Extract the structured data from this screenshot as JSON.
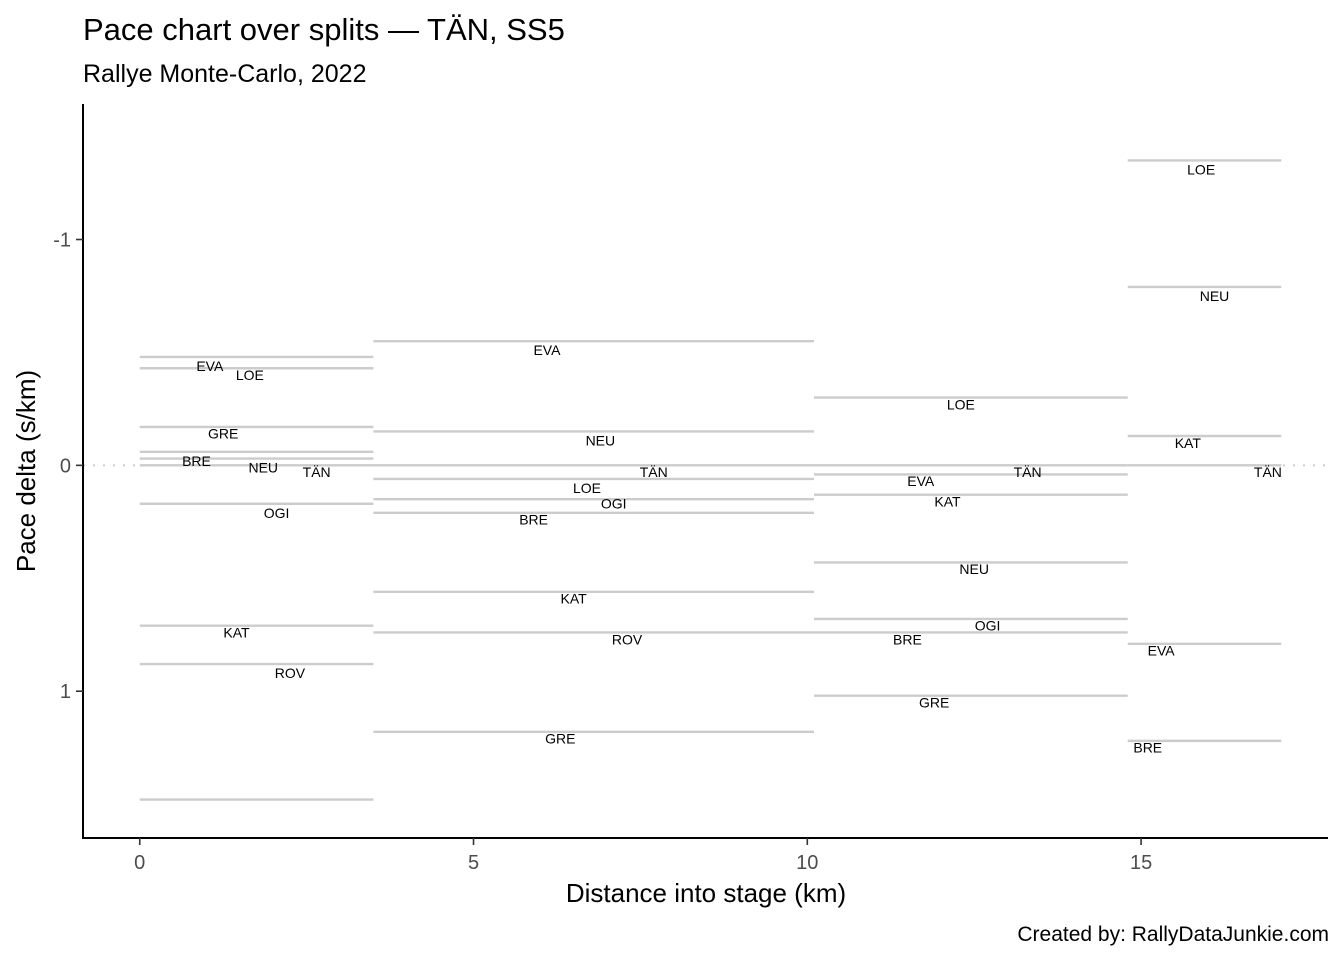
{
  "chart_data": {
    "type": "line",
    "title": "Pace chart over splits — TÄN, SS5",
    "subtitle": "Rallye Monte-Carlo, 2022",
    "xlabel": "Distance into stage (km)",
    "ylabel": "Pace delta (s/km)",
    "caption": "Created by: RallyDataJunkie.com",
    "xlim": [
      -0.85,
      17.8
    ],
    "ylim": [
      1.65,
      -1.6
    ],
    "y_reversed": true,
    "grid": false,
    "x_ticks": [
      0,
      5,
      10,
      15
    ],
    "x_tick_labels": [
      "0",
      "5",
      "10",
      "15"
    ],
    "y_ticks": [
      -1,
      0,
      1
    ],
    "y_tick_labels": [
      "-1",
      "0",
      "1"
    ],
    "reference_line": {
      "y": 0,
      "style": "dotted"
    },
    "splits": [
      {
        "x_start": 0,
        "x_end": 3.5,
        "segments": [
          {
            "label": "EVA",
            "value": -0.48,
            "label_x": 1.05,
            "label_value": -0.44
          },
          {
            "label": "LOE",
            "value": -0.43,
            "label_x": 1.65,
            "label_value": -0.4
          },
          {
            "label": "GRE",
            "value": -0.17,
            "label_x": 1.25,
            "label_value": -0.14
          },
          {
            "label": "BRE",
            "value": -0.03,
            "label_x": 0.85,
            "label_value": -0.02
          },
          {
            "label": "NEU",
            "value": -0.06,
            "label_x": 1.85,
            "label_value": 0.01
          },
          {
            "label": "TÄN",
            "value": 0.0,
            "label_x": 2.65,
            "label_value": 0.03
          },
          {
            "label": "OGI",
            "value": 0.17,
            "label_x": 2.05,
            "label_value": 0.21
          },
          {
            "label": "KAT",
            "value": 0.71,
            "label_x": 1.45,
            "label_value": 0.74
          },
          {
            "label": "ROV",
            "value": 0.88,
            "label_x": 2.25,
            "label_value": 0.92
          },
          {
            "label": "",
            "value": 1.48
          }
        ]
      },
      {
        "x_start": 3.5,
        "x_end": 10.1,
        "segments": [
          {
            "label": "EVA",
            "value": -0.55,
            "label_x": 6.1,
            "label_value": -0.51
          },
          {
            "label": "NEU",
            "value": -0.15,
            "label_x": 6.9,
            "label_value": -0.11
          },
          {
            "label": "TÄN",
            "value": 0.0,
            "label_x": 7.7,
            "label_value": 0.03
          },
          {
            "label": "LOE",
            "value": 0.06,
            "label_x": 6.7,
            "label_value": 0.1
          },
          {
            "label": "OGI",
            "value": 0.15,
            "label_x": 7.1,
            "label_value": 0.17
          },
          {
            "label": "BRE",
            "value": 0.21,
            "label_x": 5.9,
            "label_value": 0.24
          },
          {
            "label": "KAT",
            "value": 0.56,
            "label_x": 6.5,
            "label_value": 0.59
          },
          {
            "label": "ROV",
            "value": 0.74,
            "label_x": 7.3,
            "label_value": 0.77
          },
          {
            "label": "GRE",
            "value": 1.18,
            "label_x": 6.3,
            "label_value": 1.21
          }
        ]
      },
      {
        "x_start": 10.1,
        "x_end": 14.8,
        "segments": [
          {
            "label": "LOE",
            "value": -0.3,
            "label_x": 12.3,
            "label_value": -0.27
          },
          {
            "label": "TÄN",
            "value": 0.0,
            "label_x": 13.3,
            "label_value": 0.03
          },
          {
            "label": "EVA",
            "value": 0.04,
            "label_x": 11.7,
            "label_value": 0.07
          },
          {
            "label": "KAT",
            "value": 0.13,
            "label_x": 12.1,
            "label_value": 0.16
          },
          {
            "label": "NEU",
            "value": 0.43,
            "label_x": 12.5,
            "label_value": 0.46
          },
          {
            "label": "OGI",
            "value": 0.68,
            "label_x": 12.7,
            "label_value": 0.71
          },
          {
            "label": "BRE",
            "value": 0.74,
            "label_x": 11.5,
            "label_value": 0.77
          },
          {
            "label": "GRE",
            "value": 1.02,
            "label_x": 11.9,
            "label_value": 1.05
          }
        ]
      },
      {
        "x_start": 14.8,
        "x_end": 17.1,
        "segments": [
          {
            "label": "LOE",
            "value": -1.35,
            "label_x": 15.9,
            "label_value": -1.31
          },
          {
            "label": "NEU",
            "value": -0.79,
            "label_x": 16.1,
            "label_value": -0.75
          },
          {
            "label": "KAT",
            "value": -0.13,
            "label_x": 15.7,
            "label_value": -0.1
          },
          {
            "label": "TÄN",
            "value": 0.0,
            "label_x": 16.9,
            "label_value": 0.03
          },
          {
            "label": "EVA",
            "value": 0.79,
            "label_x": 15.3,
            "label_value": 0.82
          },
          {
            "label": "BRE",
            "value": 1.22,
            "label_x": 15.1,
            "label_value": 1.25
          }
        ]
      }
    ]
  }
}
